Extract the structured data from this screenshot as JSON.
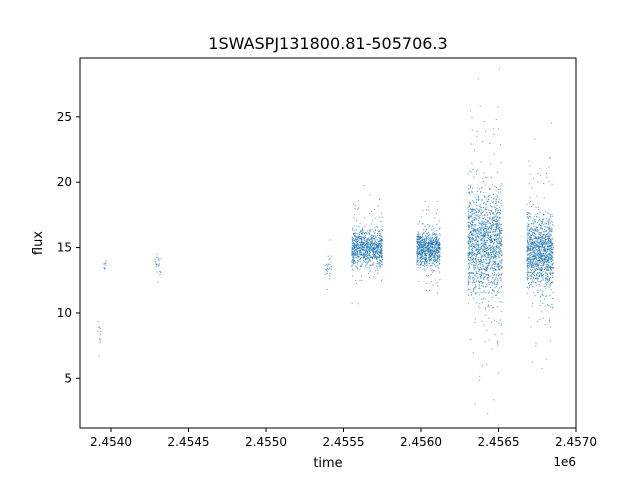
{
  "chart_data": {
    "type": "scatter",
    "title": "1SWASPJ131800.81-505706.3",
    "xlabel": "time",
    "ylabel": "flux",
    "x_offset_label": "1e6",
    "xlim": [
      2.4538,
      2.457
    ],
    "ylim": [
      1.2,
      29.5
    ],
    "x_ticks": [
      2.454,
      2.4545,
      2.455,
      2.4555,
      2.456,
      2.4565,
      2.457
    ],
    "x_tick_labels": [
      "2.4540",
      "2.4545",
      "2.4550",
      "2.4555",
      "2.4560",
      "2.4565",
      "2.4570"
    ],
    "y_ticks": [
      5,
      10,
      15,
      20,
      25
    ],
    "y_tick_labels": [
      "5",
      "10",
      "15",
      "20",
      "25"
    ],
    "grid": false,
    "marker_color": "#1f77b4",
    "series": [
      {
        "values_description_note": "",
        "clusters": [
          {
            "x_range": [
              2.45391,
              2.45393
            ],
            "y_center": 8.5,
            "y_spread": 0.8,
            "points": 12
          },
          {
            "x_range": [
              2.45395,
              2.45397
            ],
            "y_center": 13.6,
            "y_spread": 0.4,
            "points": 10
          },
          {
            "x_range": [
              2.45428,
              2.45432
            ],
            "y_center": 13.7,
            "y_spread": 0.6,
            "points": 25
          },
          {
            "x_range": [
              2.45538,
              2.45542
            ],
            "y_center": 13.5,
            "y_spread": 0.7,
            "points": 30
          },
          {
            "x_range": [
              2.45555,
              2.45575
            ],
            "y_center": 15.0,
            "y_spread": 1.2,
            "points": 900
          },
          {
            "x_range": [
              2.45597,
              2.45612
            ],
            "y_center": 15.0,
            "y_spread": 1.2,
            "points": 800
          },
          {
            "x_range": [
              2.4563,
              2.45652
            ],
            "y_center": 15.5,
            "y_spread": 3.5,
            "points": 1500
          },
          {
            "x_range": [
              2.45668,
              2.45685
            ],
            "y_center": 14.8,
            "y_spread": 2.4,
            "points": 1200
          }
        ]
      }
    ]
  }
}
